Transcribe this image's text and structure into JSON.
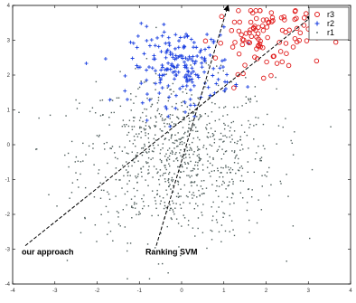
{
  "chart_data": {
    "type": "scatter",
    "title": "",
    "xlabel": "",
    "ylabel": "",
    "xlim": [
      -4,
      4
    ],
    "ylim": [
      -4,
      4
    ],
    "xticks": [
      "-4",
      "-3",
      "-2",
      "-1",
      "0",
      "1",
      "2",
      "3",
      "4"
    ],
    "yticks": [
      "-4",
      "-3",
      "-2",
      "-1",
      "0",
      "1",
      "2",
      "3",
      "4"
    ],
    "grid": false,
    "legend_position": "top-right",
    "legend": [
      {
        "label": "r3",
        "marker": "circle",
        "color": "#e01b1b"
      },
      {
        "label": "r2",
        "marker": "plus",
        "color": "#1a3fe0"
      },
      {
        "label": "r1",
        "marker": "dot",
        "color": "#4d5c5a"
      }
    ],
    "series": [
      {
        "name": "r3",
        "marker": "circle",
        "color": "#e01b1b",
        "center": [
          2.0,
          3.1
        ],
        "spread": [
          0.6,
          0.5
        ],
        "approx_count": 100
      },
      {
        "name": "r2",
        "marker": "plus",
        "color": "#1a3fe0",
        "center": [
          0.0,
          2.25
        ],
        "spread": [
          0.6,
          0.55
        ],
        "approx_count": 200
      },
      {
        "name": "r1",
        "marker": "dot",
        "color": "#4d5c5a",
        "center": [
          -0.1,
          -0.4
        ],
        "spread": [
          1.15,
          1.15
        ],
        "approx_count": 900
      }
    ],
    "annotations": [
      {
        "text": "our approach",
        "arrow_from": [
          -3.7,
          -2.9
        ],
        "arrow_to": [
          3.1,
          3.7
        ]
      },
      {
        "text": "Ranking SVM",
        "arrow_from": [
          -0.6,
          -2.9
        ],
        "arrow_to": [
          1.1,
          4.0
        ]
      }
    ]
  }
}
